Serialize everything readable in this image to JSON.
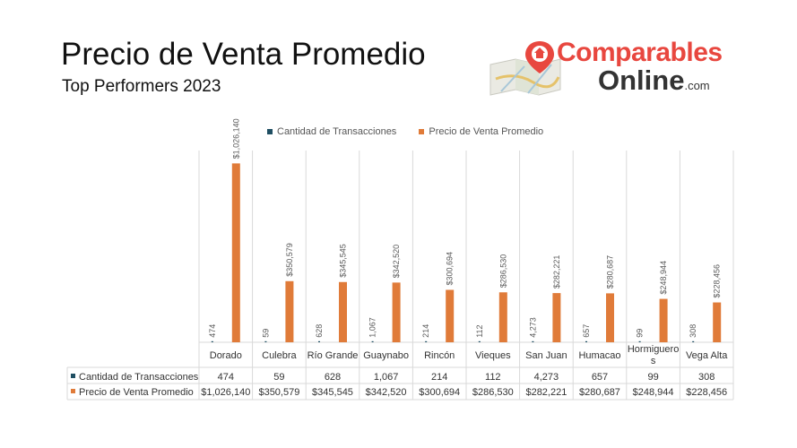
{
  "header": {
    "title": "Precio de Venta Promedio",
    "subtitle": "Top Performers 2023"
  },
  "logo": {
    "line1": "Comparables",
    "line2": "Online",
    "suffix": ".com",
    "icon": "map-pin-house-icon"
  },
  "colors": {
    "transacciones": "#1f4e62",
    "precio": "#e07b39",
    "grid": "#d9d9d9",
    "text": "#595959"
  },
  "chart_data": {
    "type": "bar",
    "categories": [
      "Dorado",
      "Culebra",
      "Río Grande",
      "Guaynabo",
      "Rincón",
      "Vieques",
      "San Juan",
      "Humacao",
      "Hormigueros",
      "Vega Alta"
    ],
    "category_display": [
      "Dorado",
      "Culebra",
      "Río Grande",
      "Guaynabo",
      "Rincón",
      "Vieques",
      "San Juan",
      "Humacao",
      "Hormiguero|s",
      "Vega Alta"
    ],
    "series": [
      {
        "name": "Cantidad de Transacciones",
        "values": [
          474,
          59,
          628,
          1067,
          214,
          112,
          4273,
          657,
          99,
          308
        ],
        "labels": [
          "474",
          "59",
          "628",
          "1,067",
          "214",
          "112",
          "4,273",
          "657",
          "99",
          "308"
        ]
      },
      {
        "name": "Precio de Venta Promedio",
        "values": [
          1026140,
          350579,
          345545,
          342520,
          300694,
          286530,
          282221,
          280687,
          248944,
          228456
        ],
        "labels": [
          "$1,026,140",
          "$350,579",
          "$345,545",
          "$342,520",
          "$300,694",
          "$286,530",
          "$282,221",
          "$280,687",
          "$248,944",
          "$228,456"
        ]
      }
    ],
    "legend_position": "top",
    "has_data_table": true,
    "grid": "vertical category separators"
  }
}
